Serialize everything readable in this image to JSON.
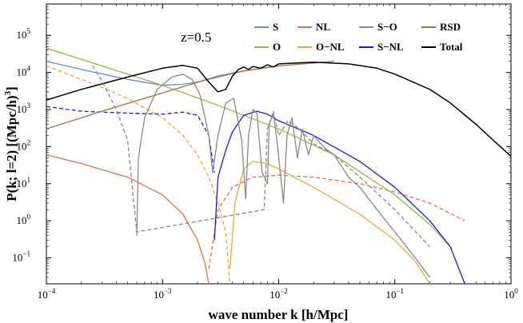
{
  "chart_data": {
    "type": "line",
    "title": "",
    "xlabel_parts": [
      "wave number k [h/Mpc]"
    ],
    "ylabel_parts": [
      "P(k; l=2) [(Mpc/h)",
      "3",
      "]"
    ],
    "xscale": "log",
    "yscale": "log",
    "xlim": [
      0.0001,
      1
    ],
    "ylim": [
      0.02,
      700000
    ],
    "x_ticks": [
      {
        "value": 0.0001,
        "base": "10",
        "exp": "−4"
      },
      {
        "value": 0.001,
        "base": "10",
        "exp": "−3"
      },
      {
        "value": 0.01,
        "base": "10",
        "exp": "−2"
      },
      {
        "value": 0.1,
        "base": "10",
        "exp": "−1"
      },
      {
        "value": 1,
        "base": "10",
        "exp": "0"
      }
    ],
    "y_ticks": [
      {
        "value": 0.1,
        "base": "10",
        "exp": "−1"
      },
      {
        "value": 1,
        "base": "10",
        "exp": "0"
      },
      {
        "value": 10,
        "base": "10",
        "exp": "1"
      },
      {
        "value": 100,
        "base": "10",
        "exp": "2"
      },
      {
        "value": 1000,
        "base": "10",
        "exp": "3"
      },
      {
        "value": 10000,
        "base": "10",
        "exp": "4"
      },
      {
        "value": 100000,
        "base": "10",
        "exp": "5"
      }
    ],
    "annotation": "z=0.5",
    "legend_position": "top-right",
    "series": [
      {
        "name": "S",
        "color": "#5b8fd6",
        "style": "solid",
        "x": [
          0.0001,
          0.0002,
          0.0005,
          0.001,
          0.0015,
          0.002,
          0.003,
          0.005,
          0.01
        ],
        "y": [
          20000,
          12000,
          6500,
          4500,
          4800,
          5500,
          7500,
          11000,
          15000
        ]
      },
      {
        "name": "NL",
        "color": "#f06a42",
        "style": "solid",
        "x": [
          0.0001,
          0.0002,
          0.0005,
          0.001,
          0.0015,
          0.002,
          0.0023,
          0.0025
        ],
        "y": [
          60,
          35,
          15,
          5,
          1.5,
          0.3,
          0.08,
          0.02
        ]
      },
      {
        "name": "NL (negative)",
        "color": "#f06a42",
        "style": "dashed",
        "x": [
          0.0025,
          0.003,
          0.004,
          0.006,
          0.01,
          0.02,
          0.05,
          0.1,
          0.2,
          0.4
        ],
        "y": [
          0.05,
          2,
          8,
          15,
          17,
          15,
          10,
          6,
          3,
          1
        ]
      },
      {
        "name": "O",
        "color": "#8fbc3d",
        "style": "solid",
        "x": [
          0.0001,
          0.0003,
          0.001,
          0.003,
          0.01,
          0.03,
          0.1,
          0.2,
          0.3
        ],
        "y": [
          45000,
          15000,
          4500,
          1300,
          300,
          60,
          5,
          0.8,
          0.2
        ]
      },
      {
        "name": "O−NL (negative)",
        "color": "#e8a838",
        "style": "dashed",
        "x": [
          0.0001,
          0.0003,
          0.0005,
          0.001,
          0.0015,
          0.002,
          0.0025,
          0.003,
          0.0035,
          0.0038
        ],
        "y": [
          15000,
          4000,
          2000,
          600,
          200,
          60,
          15,
          3,
          0.5,
          0.02
        ]
      },
      {
        "name": "O−NL",
        "color": "#e8a838",
        "style": "solid",
        "x": [
          0.0038,
          0.0042,
          0.005,
          0.006,
          0.008,
          0.01,
          0.02,
          0.05,
          0.1,
          0.15,
          0.2
        ],
        "y": [
          0.05,
          3,
          25,
          40,
          35,
          25,
          8,
          1.5,
          0.3,
          0.08,
          0.02
        ]
      },
      {
        "name": "S−NL (negative)",
        "color": "#1a1aee",
        "style": "dashed",
        "x": [
          0.0001,
          0.0002,
          0.0005,
          0.001,
          0.0015,
          0.002,
          0.0025,
          0.0028
        ],
        "y": [
          1200,
          900,
          800,
          750,
          850,
          700,
          200,
          20
        ]
      },
      {
        "name": "S−NL",
        "color": "#1a1aee",
        "style": "solid",
        "x": [
          0.0028,
          0.003,
          0.0035,
          0.004,
          0.005,
          0.0065,
          0.008,
          0.01,
          0.02,
          0.05,
          0.1,
          0.2,
          0.3,
          0.4
        ],
        "y": [
          0.3,
          15,
          80,
          250,
          700,
          900,
          750,
          500,
          200,
          40,
          8,
          1,
          0.2,
          0.02
        ]
      },
      {
        "name": "RSD",
        "color": "#a86a3c",
        "style": "solid",
        "x": [
          0.0001,
          0.0003,
          0.001,
          0.003,
          0.005,
          0.01,
          0.02,
          0.03
        ],
        "y": [
          300,
          900,
          2800,
          8000,
          11000,
          15000,
          18000,
          20000
        ]
      },
      {
        "name": "Total",
        "color": "#000000",
        "style": "solid",
        "x": [
          0.0001,
          0.0002,
          0.0005,
          0.001,
          0.0015,
          0.002,
          0.0025,
          0.003,
          0.0035,
          0.004,
          0.0045,
          0.005,
          0.0055,
          0.006,
          0.007,
          0.008,
          0.009,
          0.01,
          0.02,
          0.04,
          0.07,
          0.1,
          0.2,
          0.3,
          0.5,
          0.7,
          1
        ],
        "y": [
          1800,
          3500,
          7500,
          13000,
          15500,
          13000,
          5500,
          3000,
          3500,
          8000,
          12000,
          14000,
          12000,
          14500,
          13000,
          16000,
          14000,
          17000,
          19000,
          17000,
          13000,
          9000,
          3500,
          1500,
          400,
          150,
          55
        ]
      },
      {
        "name": "S−O",
        "color": "#888888",
        "style": "solid",
        "x": [
          0.0006,
          0.00062,
          0.0007,
          0.0009,
          0.0012,
          0.0015,
          0.0018,
          0.0021,
          0.0025,
          0.0027,
          0.003,
          0.0035,
          0.0041,
          0.0048,
          0.0052,
          0.0055,
          0.006,
          0.0065,
          0.0072,
          0.008,
          0.0083,
          0.009,
          0.0098,
          0.011,
          0.0118,
          0.013,
          0.0145,
          0.016,
          0.018,
          0.02,
          0.025,
          0.03,
          0.04,
          0.05,
          0.07,
          0.1,
          0.15,
          0.2
        ],
        "y": [
          0.4,
          50,
          600,
          3500,
          7500,
          9000,
          6500,
          2500,
          200,
          20,
          200,
          1500,
          2000,
          150,
          4,
          200,
          1000,
          800,
          20,
          10,
          400,
          800,
          100,
          3,
          200,
          600,
          50,
          300,
          60,
          200,
          90,
          60,
          15,
          8,
          2,
          0.5,
          0.1,
          0.03
        ]
      },
      {
        "name": "S−O (negative)",
        "color": "#888888",
        "style": "dashed",
        "x": [
          0.00025,
          0.0003,
          0.0004,
          0.0005,
          0.0006,
          0.0075,
          0.008,
          0.009,
          0.01,
          0.012,
          0.015,
          0.02,
          0.03,
          0.05,
          0.1,
          0.2
        ],
        "y": [
          15000,
          6000,
          1000,
          150,
          0.5,
          2,
          300,
          900,
          200,
          500,
          300,
          120,
          60,
          15,
          2,
          0.2
        ]
      }
    ],
    "legend": [
      {
        "label": "S",
        "color": "#5b8fd6"
      },
      {
        "label": "NL",
        "color": "#f06a42"
      },
      {
        "label": "S−O",
        "color": "#888888"
      },
      {
        "label": "RSD",
        "color": "#a86a3c"
      },
      {
        "label": "O",
        "color": "#8fbc3d"
      },
      {
        "label": "O−NL",
        "color": "#e8a838"
      },
      {
        "label": "S−NL",
        "color": "#1a1aee"
      },
      {
        "label": "Total",
        "color": "#000000"
      }
    ]
  }
}
